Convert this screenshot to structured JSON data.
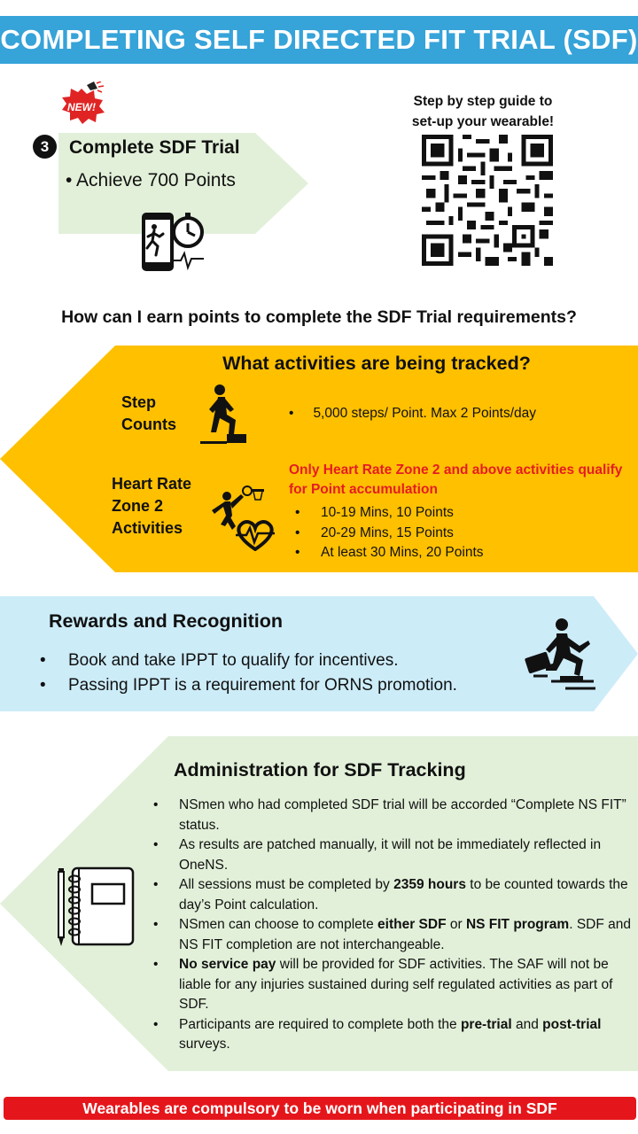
{
  "title": "COMPLETING SELF DIRECTED FIT TRIAL (SDF)",
  "badge_new": "NEW!",
  "step": {
    "number": "3",
    "title": "Complete SDF Trial",
    "bullet": "Achieve 700 Points"
  },
  "qr": {
    "caption_line1": "Step by step guide to",
    "caption_line2": "set-up your wearable!"
  },
  "question": "How can I earn points to complete the SDF Trial requirements?",
  "activities": {
    "heading": "What activities are being tracked?",
    "step_label_1": "Step",
    "step_label_2": "Counts",
    "step_bullet": "•",
    "step_text": "5,000 steps/ Point. Max 2 Points/day",
    "hr_label_1": "Heart Rate",
    "hr_label_2": "Zone 2",
    "hr_label_3": "Activities",
    "hr_note": "Only Heart Rate Zone 2 and above activities qualify for Point accumulation",
    "hr_items": [
      "10-19 Mins, 10 Points",
      "20-29 Mins, 15 Points",
      "At least 30 Mins, 20 Points"
    ]
  },
  "rewards": {
    "heading": "Rewards and Recognition",
    "items": [
      "Book and take IPPT to qualify for incentives.",
      "Passing IPPT is a requirement for ORNS promotion."
    ]
  },
  "admin": {
    "heading": "Administration for SDF Tracking",
    "items": [
      {
        "pre": "NSmen who had completed SDF trial will be accorded “Complete NS FIT” status."
      },
      {
        "pre": "As results are patched manually, it will not be immediately reflected in OneNS."
      },
      {
        "pre": "All sessions must be completed by ",
        "b1": "2359 hours",
        "mid": " to be counted towards the day’s Point calculation."
      },
      {
        "pre": "NSmen can choose to complete ",
        "b1": "either SDF",
        "mid": " or ",
        "b2": "NS FIT program",
        "post": ". SDF and NS FIT completion are not interchangeable."
      },
      {
        "b1": "No service pay",
        "mid": " will be provided for SDF activities. The SAF will not be liable for any injuries sustained during self regulated activities as part of SDF."
      },
      {
        "pre": "Participants are required to complete both the ",
        "b1": "pre-trial",
        "mid": " and ",
        "b2": "post-trial",
        "post": " surveys."
      }
    ]
  },
  "footer": "Wearables are compulsory to be worn when participating in SDF",
  "colors": {
    "banner": "#36a3d9",
    "green": "#e2f0d9",
    "orange": "#ffc000",
    "blue": "#ccecf8",
    "red_note": "#e51c23",
    "footer": "#e5161b"
  },
  "icons": [
    "new-badge-icon",
    "stopwatch-phone-icon",
    "qr-code-icon",
    "stair-climber-icon",
    "basketball-heart-icon",
    "runner-briefcase-icon",
    "notebook-pen-icon"
  ]
}
